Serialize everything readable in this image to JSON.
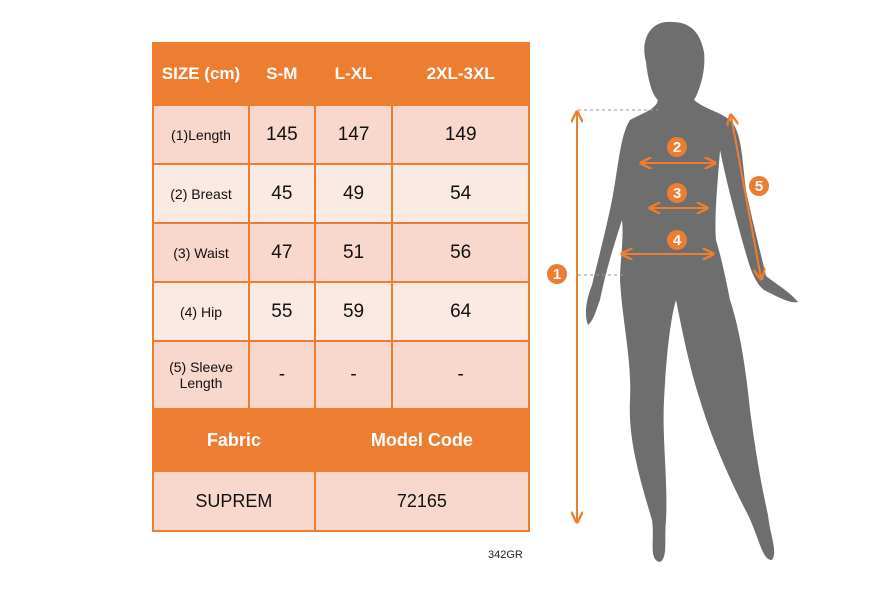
{
  "table": {
    "header": [
      "SIZE (cm)",
      "S-M",
      "L-XL",
      "2XL-3XL"
    ],
    "rows": [
      {
        "label": "(1)Length",
        "values": [
          "145",
          "147",
          "149"
        ]
      },
      {
        "label": "(2) Breast",
        "values": [
          "45",
          "49",
          "54"
        ]
      },
      {
        "label": "(3) Waist",
        "values": [
          "47",
          "51",
          "56"
        ]
      },
      {
        "label": "(4) Hip",
        "values": [
          "55",
          "59",
          "64"
        ]
      },
      {
        "label": "(5) Sleeve Length",
        "values": [
          "-",
          "-",
          "-"
        ]
      }
    ],
    "fabric_label": "Fabric",
    "model_code_label": "Model Code",
    "fabric": "SUPREM",
    "model_code": "72165"
  },
  "product_code": "342GR",
  "markers": [
    "1",
    "2",
    "3",
    "4",
    "5"
  ],
  "colors": {
    "accent": "#ED7D31",
    "row_dark": "#F8D7CC",
    "row_light": "#FBEAE4",
    "silhouette": "#6E6E6E"
  }
}
